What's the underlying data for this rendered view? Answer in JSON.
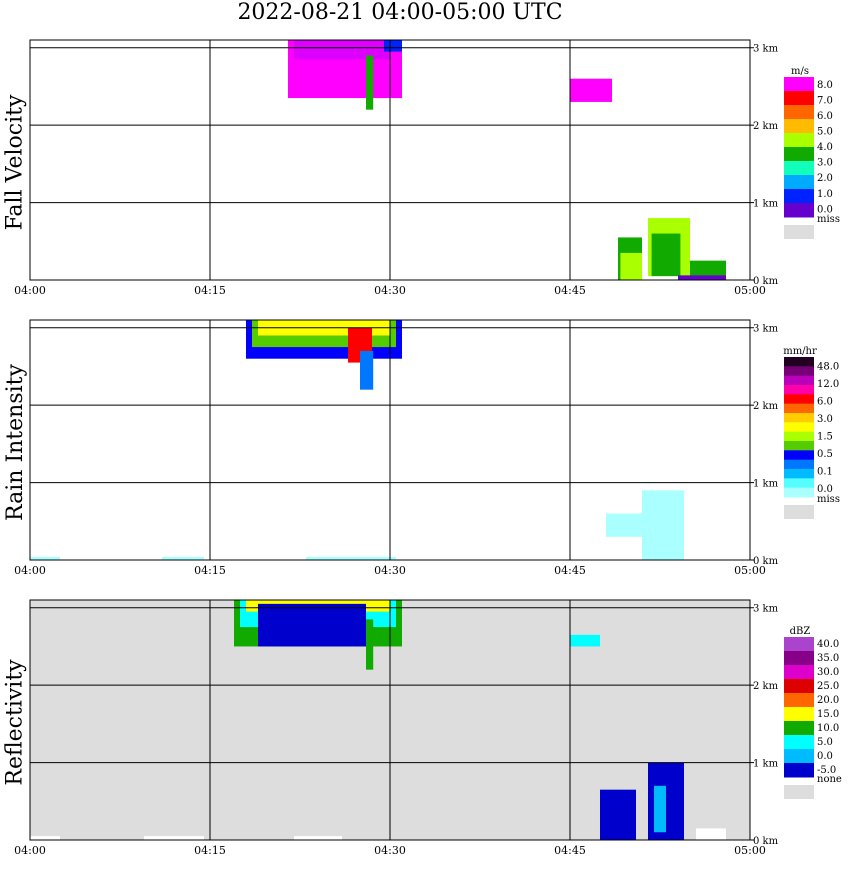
{
  "title": "2022-08-21   04:00-05:00 UTC",
  "chart_data": [
    {
      "type": "heatmap",
      "ylabel": "Fall Velocity",
      "x_ticks": [
        "04:00",
        "04:15",
        "04:30",
        "04:45",
        "05:00"
      ],
      "y_ticks": [
        "0 km",
        "1 km",
        "2 km",
        "3 km"
      ],
      "xlim": [
        "04:00",
        "05:00"
      ],
      "ylim_km": [
        0,
        3.1
      ],
      "grid": true,
      "background": "#ffffff",
      "legend": {
        "unit": "m/s",
        "labels": [
          "8.0",
          "7.0",
          "6.0",
          "5.0",
          "4.0",
          "3.0",
          "2.0",
          "1.0",
          "0.0"
        ],
        "colors": [
          "#ff00ff",
          "#ff0000",
          "#ff6600",
          "#ffbb00",
          "#aaff00",
          "#11aa00",
          "#11ffbb",
          "#00aaff",
          "#0022ff",
          "#6600cc"
        ],
        "missing_label": "miss",
        "missing_color": "#dddddd"
      },
      "echoes": [
        {
          "t0": 21.5,
          "t1": 31.0,
          "top": 3.1,
          "bottom": 2.35,
          "color": "#ff00ff"
        },
        {
          "t0": 22.0,
          "t1": 30.0,
          "top": 3.1,
          "bottom": 2.85,
          "color": "#dd00ff"
        },
        {
          "t0": 28.0,
          "t1": 28.6,
          "top": 2.9,
          "bottom": 2.2,
          "color": "#11aa00"
        },
        {
          "t0": 29.5,
          "t1": 31.0,
          "top": 3.1,
          "bottom": 2.95,
          "color": "#0022ff"
        },
        {
          "t0": 49.0,
          "t1": 51.0,
          "top": 0.55,
          "bottom": 0.0,
          "color": "#11aa00"
        },
        {
          "t0": 49.2,
          "t1": 51.0,
          "top": 0.35,
          "bottom": 0.0,
          "color": "#aaff00"
        },
        {
          "t0": 51.5,
          "t1": 55.0,
          "top": 0.8,
          "bottom": 0.05,
          "color": "#aaff00"
        },
        {
          "t0": 51.8,
          "t1": 54.2,
          "top": 0.6,
          "bottom": 0.05,
          "color": "#11aa00"
        },
        {
          "t0": 55.0,
          "t1": 58.0,
          "top": 0.25,
          "bottom": 0.0,
          "color": "#11aa00"
        },
        {
          "t0": 54.0,
          "t1": 58.0,
          "top": 0.06,
          "bottom": 0.0,
          "color": "#6600cc"
        },
        {
          "t0": 45.0,
          "t1": 48.5,
          "top": 2.6,
          "bottom": 2.3,
          "color": "#ff00ff"
        }
      ]
    },
    {
      "type": "heatmap",
      "ylabel": "Rain Intensity",
      "x_ticks": [
        "04:00",
        "04:15",
        "04:30",
        "04:45",
        "05:00"
      ],
      "y_ticks": [
        "0 km",
        "1 km",
        "2 km",
        "3 km"
      ],
      "xlim": [
        "04:00",
        "05:00"
      ],
      "ylim_km": [
        0,
        3.1
      ],
      "grid": true,
      "background": "#ffffff",
      "legend": {
        "unit": "mm/hr",
        "labels": [
          "48.0",
          "12.0",
          "6.0",
          "3.0",
          "1.5",
          "0.5",
          "0.1",
          "0.0"
        ],
        "colors": [
          "#220022",
          "#770077",
          "#bb00bb",
          "#ff00aa",
          "#ff0000",
          "#ff6600",
          "#ffcc00",
          "#ffff00",
          "#aaff00",
          "#55cc00",
          "#0000ff",
          "#0077ff",
          "#00bbff",
          "#55ffff",
          "#aaffff"
        ],
        "missing_label": "miss",
        "missing_color": "#dddddd"
      },
      "echoes": [
        {
          "t0": 18.0,
          "t1": 31.0,
          "top": 3.1,
          "bottom": 2.6,
          "color": "#0000ff"
        },
        {
          "t0": 18.5,
          "t1": 30.5,
          "top": 3.1,
          "bottom": 2.75,
          "color": "#55cc00"
        },
        {
          "t0": 19.0,
          "t1": 30.0,
          "top": 3.1,
          "bottom": 2.9,
          "color": "#ffff00"
        },
        {
          "t0": 26.5,
          "t1": 28.5,
          "top": 3.0,
          "bottom": 2.55,
          "color": "#ff0000"
        },
        {
          "t0": 27.5,
          "t1": 28.6,
          "top": 2.7,
          "bottom": 2.2,
          "color": "#0077ff"
        },
        {
          "t0": 48.0,
          "t1": 51.0,
          "top": 0.6,
          "bottom": 0.3,
          "color": "#aaffff"
        },
        {
          "t0": 51.0,
          "t1": 54.5,
          "top": 0.9,
          "bottom": 0.0,
          "color": "#aaffff"
        },
        {
          "t0": 0.0,
          "t1": 2.5,
          "top": 0.04,
          "bottom": 0.0,
          "color": "#aaffff"
        },
        {
          "t0": 11.0,
          "t1": 14.5,
          "top": 0.04,
          "bottom": 0.0,
          "color": "#aaffff"
        },
        {
          "t0": 23.0,
          "t1": 30.5,
          "top": 0.04,
          "bottom": 0.0,
          "color": "#aaffff"
        }
      ]
    },
    {
      "type": "heatmap",
      "ylabel": "Reflectivity",
      "x_ticks": [
        "04:00",
        "04:15",
        "04:30",
        "04:45",
        "05:00"
      ],
      "y_ticks": [
        "0 km",
        "1 km",
        "2 km",
        "3 km"
      ],
      "xlim": [
        "04:00",
        "05:00"
      ],
      "ylim_km": [
        0,
        3.1
      ],
      "grid": true,
      "background": "#dddddd",
      "legend": {
        "unit": "dBZ",
        "labels": [
          "40.0",
          "35.0",
          "30.0",
          "25.0",
          "20.0",
          "15.0",
          "10.0",
          "5.0",
          "0.0",
          "-5.0"
        ],
        "colors": [
          "#aa44cc",
          "#880088",
          "#dd00cc",
          "#dd0000",
          "#ff6600",
          "#ffff00",
          "#11aa00",
          "#00ffff",
          "#00bbff",
          "#0000cc"
        ],
        "missing_label": "none",
        "missing_color": "#dddddd"
      },
      "echoes": [
        {
          "t0": 17.0,
          "t1": 31.0,
          "top": 3.1,
          "bottom": 2.5,
          "color": "#11aa00"
        },
        {
          "t0": 17.5,
          "t1": 30.5,
          "top": 3.1,
          "bottom": 2.75,
          "color": "#00ffff"
        },
        {
          "t0": 18.0,
          "t1": 30.0,
          "top": 3.1,
          "bottom": 2.95,
          "color": "#ffff00"
        },
        {
          "t0": 19.0,
          "t1": 28.0,
          "top": 3.05,
          "bottom": 2.5,
          "color": "#0000cc"
        },
        {
          "t0": 28.0,
          "t1": 28.6,
          "top": 2.85,
          "bottom": 2.2,
          "color": "#11aa00"
        },
        {
          "t0": 47.5,
          "t1": 50.5,
          "top": 0.65,
          "bottom": 0.0,
          "color": "#0000cc"
        },
        {
          "t0": 51.5,
          "t1": 54.5,
          "top": 1.0,
          "bottom": 0.0,
          "color": "#0000cc"
        },
        {
          "t0": 52.0,
          "t1": 53.0,
          "top": 0.7,
          "bottom": 0.1,
          "color": "#00bbff"
        },
        {
          "t0": 55.5,
          "t1": 58.0,
          "top": 0.15,
          "bottom": 0.0,
          "color": "#ffffff"
        },
        {
          "t0": 0.0,
          "t1": 2.5,
          "top": 0.05,
          "bottom": 0.0,
          "color": "#ffffff"
        },
        {
          "t0": 9.5,
          "t1": 14.5,
          "top": 0.05,
          "bottom": 0.0,
          "color": "#ffffff"
        },
        {
          "t0": 22.0,
          "t1": 26.0,
          "top": 0.05,
          "bottom": 0.0,
          "color": "#ffffff"
        },
        {
          "t0": 45.0,
          "t1": 47.5,
          "top": 2.65,
          "bottom": 2.5,
          "color": "#00ffff"
        }
      ]
    }
  ]
}
